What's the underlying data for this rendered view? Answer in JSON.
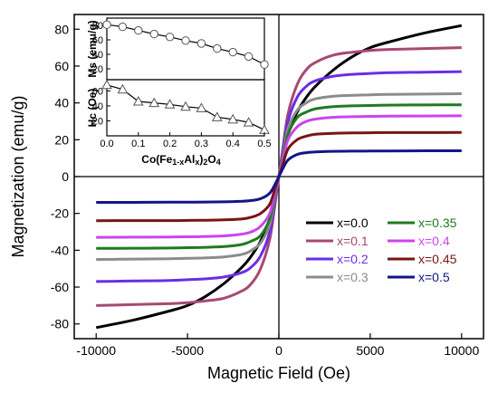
{
  "chart_data": [
    {
      "type": "line",
      "xlabel": "Magnetic Field (Oe)",
      "ylabel": "Magnetization (emu/g)",
      "xlim": [
        -11200,
        11200
      ],
      "ylim": [
        -88,
        88
      ],
      "xticks": [
        -10000,
        -5000,
        0,
        5000,
        10000
      ],
      "yticks": [
        -80,
        -60,
        -40,
        -20,
        0,
        20,
        40,
        60,
        80
      ],
      "legend": "bottom-right",
      "x": [
        -10000,
        -8000,
        -6000,
        -5000,
        -4000,
        -3000,
        -2000,
        -1500,
        -1000,
        -500,
        -200,
        0,
        200,
        500,
        1000,
        1500,
        2000,
        3000,
        4000,
        5000,
        6000,
        8000,
        10000
      ],
      "series": [
        {
          "name": "x=0.0",
          "color": "#000000",
          "values": [
            -82,
            -78,
            -73,
            -70,
            -65,
            -58,
            -49,
            -43,
            -35,
            -23,
            -10,
            0,
            10,
            23,
            35,
            43,
            49,
            58,
            65,
            70,
            73,
            78,
            82
          ]
        },
        {
          "name": "x=0.1",
          "color": "#a84873",
          "values": [
            -70,
            -69.5,
            -69,
            -68.5,
            -67.5,
            -66,
            -62,
            -58,
            -50,
            -34,
            -14,
            0,
            14,
            34,
            50,
            58,
            62,
            66,
            67.5,
            68.5,
            69,
            69.5,
            70
          ]
        },
        {
          "name": "x=0.2",
          "color": "#6a2ee6",
          "values": [
            -57,
            -56.7,
            -56.4,
            -56,
            -55.5,
            -54.5,
            -52,
            -49,
            -43,
            -30,
            -12,
            0,
            12,
            30,
            43,
            49,
            52,
            54.5,
            55.5,
            56,
            56.4,
            56.7,
            57
          ]
        },
        {
          "name": "x=0.3",
          "color": "#8c8c8c",
          "values": [
            -45,
            -44.8,
            -44.6,
            -44.4,
            -44.1,
            -43.6,
            -42.2,
            -40,
            -36,
            -26,
            -10,
            0,
            10,
            26,
            36,
            40,
            42.2,
            43.6,
            44.1,
            44.4,
            44.6,
            44.8,
            45
          ]
        },
        {
          "name": "x=0.35",
          "color": "#1f7a1f",
          "values": [
            -39,
            -38.9,
            -38.8,
            -38.6,
            -38.4,
            -38,
            -36.8,
            -35,
            -32,
            -23,
            -9,
            0,
            9,
            23,
            32,
            35,
            36.8,
            38,
            38.4,
            38.6,
            38.8,
            38.9,
            39
          ]
        },
        {
          "name": "x=0.4",
          "color": "#cc44ee",
          "values": [
            -33,
            -32.9,
            -32.8,
            -32.7,
            -32.5,
            -32.2,
            -31.2,
            -30,
            -27,
            -20,
            -8,
            0,
            8,
            20,
            27,
            30,
            31.2,
            32.2,
            32.5,
            32.7,
            32.8,
            32.9,
            33
          ]
        },
        {
          "name": "x=0.45",
          "color": "#7a1414",
          "values": [
            -24,
            -23.9,
            -23.9,
            -23.8,
            -23.7,
            -23.5,
            -23,
            -22,
            -20,
            -15,
            -6,
            0,
            6,
            15,
            20,
            22,
            23,
            23.5,
            23.7,
            23.8,
            23.9,
            23.9,
            24
          ]
        },
        {
          "name": "x=0.5",
          "color": "#141488",
          "values": [
            -14,
            -14,
            -13.9,
            -13.9,
            -13.8,
            -13.7,
            -13.4,
            -13,
            -12,
            -9,
            -4,
            0,
            4,
            9,
            12,
            13,
            13.4,
            13.7,
            13.8,
            13.9,
            13.9,
            14,
            14
          ]
        }
      ]
    },
    {
      "type": "line",
      "xlabel": "Co(Fe1-xAlx)2O4",
      "ylabel": "Ms (emu/g)",
      "xlim": [
        0,
        0.5
      ],
      "ylim": [
        5,
        90
      ],
      "yticks": [
        20,
        40,
        60,
        80
      ],
      "marker": "circle",
      "x": [
        0,
        0.05,
        0.1,
        0.15,
        0.2,
        0.25,
        0.3,
        0.35,
        0.4,
        0.45,
        0.5
      ],
      "values": [
        81,
        78,
        73,
        68,
        64,
        59,
        55,
        48,
        43,
        37,
        26
      ]
    },
    {
      "type": "line",
      "xlabel": "Co(Fe1-xAlx)2O4",
      "ylabel": "Hc (Oe)",
      "xlim": [
        0,
        0.5
      ],
      "ylim": [
        0,
        75
      ],
      "yticks": [
        20,
        40,
        60
      ],
      "xticks": [
        "0.0",
        "0.1",
        "0.2",
        "0.3",
        "0.4",
        "0.5"
      ],
      "marker": "triangle",
      "x": [
        0,
        0.05,
        0.1,
        0.15,
        0.2,
        0.25,
        0.3,
        0.35,
        0.4,
        0.45,
        0.5
      ],
      "values": [
        68,
        62,
        46,
        44,
        42,
        39,
        37,
        25,
        22,
        18,
        8
      ]
    }
  ]
}
